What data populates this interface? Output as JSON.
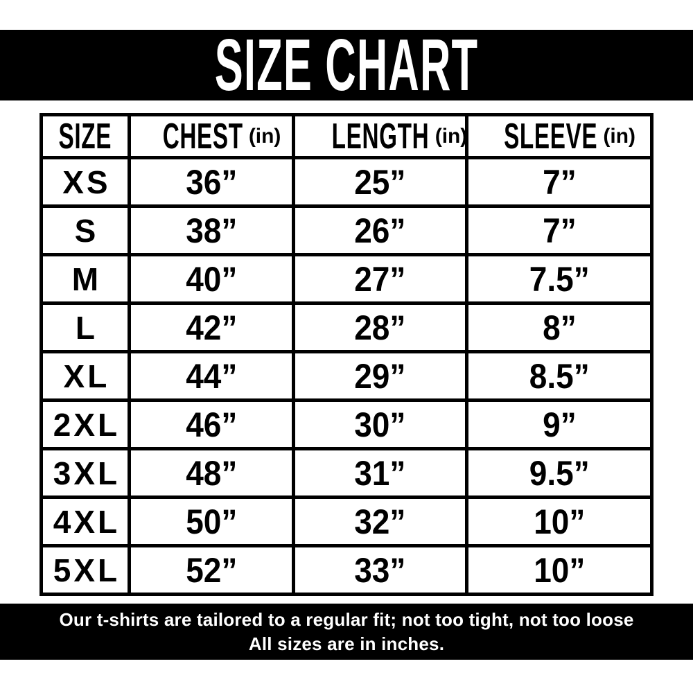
{
  "title": "SIZE CHART",
  "colors": {
    "banner_bg": "#000000",
    "banner_text": "#ffffff",
    "table_border": "#000000",
    "table_text": "#000000",
    "page_bg": "#ffffff"
  },
  "table": {
    "headers": [
      {
        "label": "SIZE",
        "unit": ""
      },
      {
        "label": "CHEST",
        "unit": "(in)"
      },
      {
        "label": "LENGTH",
        "unit": "(in)"
      },
      {
        "label": "SLEEVE",
        "unit": "(in)"
      }
    ],
    "rows": [
      {
        "size": "XS",
        "chest": "36”",
        "length": "25”",
        "sleeve": "7”"
      },
      {
        "size": "S",
        "chest": "38”",
        "length": "26”",
        "sleeve": "7”"
      },
      {
        "size": "M",
        "chest": "40”",
        "length": "27”",
        "sleeve": "7.5”"
      },
      {
        "size": "L",
        "chest": "42”",
        "length": "28”",
        "sleeve": "8”"
      },
      {
        "size": "XL",
        "chest": "44”",
        "length": "29”",
        "sleeve": "8.5”"
      },
      {
        "size": "2XL",
        "chest": "46”",
        "length": "30”",
        "sleeve": "9”"
      },
      {
        "size": "3XL",
        "chest": "48”",
        "length": "31”",
        "sleeve": "9.5”"
      },
      {
        "size": "4XL",
        "chest": "50”",
        "length": "32”",
        "sleeve": "10”"
      },
      {
        "size": "5XL",
        "chest": "52”",
        "length": "33”",
        "sleeve": "10”"
      }
    ]
  },
  "footer": {
    "line1": "Our t-shirts are tailored to a regular fit; not too tight, not too loose",
    "line2": "All sizes are in inches."
  },
  "chart_data": {
    "type": "table",
    "title": "SIZE CHART",
    "columns": [
      "SIZE",
      "CHEST (in)",
      "LENGTH (in)",
      "SLEEVE (in)"
    ],
    "rows": [
      [
        "XS",
        36,
        25,
        7
      ],
      [
        "S",
        38,
        26,
        7
      ],
      [
        "M",
        40,
        27,
        7.5
      ],
      [
        "L",
        42,
        28,
        8
      ],
      [
        "XL",
        44,
        29,
        8.5
      ],
      [
        "2XL",
        46,
        30,
        9
      ],
      [
        "3XL",
        48,
        31,
        9.5
      ],
      [
        "4XL",
        50,
        32,
        10
      ],
      [
        "5XL",
        52,
        33,
        10
      ]
    ],
    "notes": [
      "Our t-shirts are tailored to a regular fit; not too tight, not too loose",
      "All sizes are in inches."
    ]
  }
}
